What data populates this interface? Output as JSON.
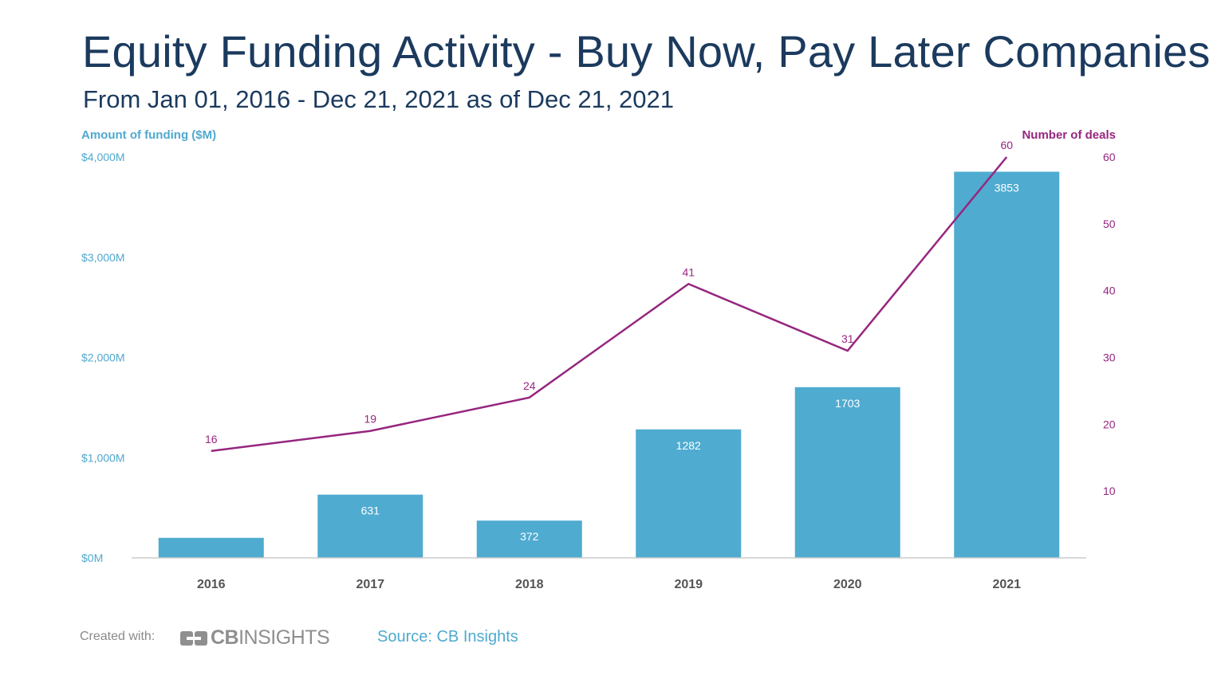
{
  "chart_data": {
    "type": "bar+line",
    "title": "Equity Funding Activity - Buy Now, Pay Later Companies",
    "subtitle": "From Jan 01, 2016 - Dec 21, 2021 as of Dec 21, 2021",
    "categories": [
      "2016",
      "2017",
      "2018",
      "2019",
      "2020",
      "2021"
    ],
    "series": [
      {
        "name": "Amount of funding ($M)",
        "kind": "bar",
        "axis": "left",
        "values": [
          200,
          631,
          372,
          1282,
          1703,
          3853
        ],
        "labels": [
          "",
          "631",
          "372",
          "1282",
          "1703",
          "3853"
        ]
      },
      {
        "name": "Number of deals",
        "kind": "line",
        "axis": "right",
        "values": [
          16,
          19,
          24,
          41,
          31,
          60
        ],
        "labels": [
          "16",
          "19",
          "24",
          "41",
          "31",
          "60"
        ]
      }
    ],
    "left_axis": {
      "label": "Amount of funding ($M)",
      "range": [
        0,
        4000
      ],
      "ticks": [
        0,
        1000,
        2000,
        3000,
        4000
      ],
      "tick_labels": [
        "$0M",
        "$1,000M",
        "$2,000M",
        "$3,000M",
        "$4,000M"
      ]
    },
    "right_axis": {
      "label": "Number of deals",
      "range": [
        0,
        60
      ],
      "ticks": [
        10,
        20,
        30,
        40,
        50,
        60
      ],
      "tick_labels": [
        "10",
        "20",
        "30",
        "40",
        "50",
        "60"
      ]
    },
    "grid": false
  },
  "colors": {
    "bar": "#4fabd0",
    "line": "#96267f",
    "title": "#1b3a5e",
    "left_axis": "#4fa9cf",
    "category": "#555555"
  },
  "footer": {
    "created_with": "Created with:",
    "logo_bold": "CB",
    "logo_light": "INSIGHTS",
    "source": "Source: CB Insights"
  }
}
